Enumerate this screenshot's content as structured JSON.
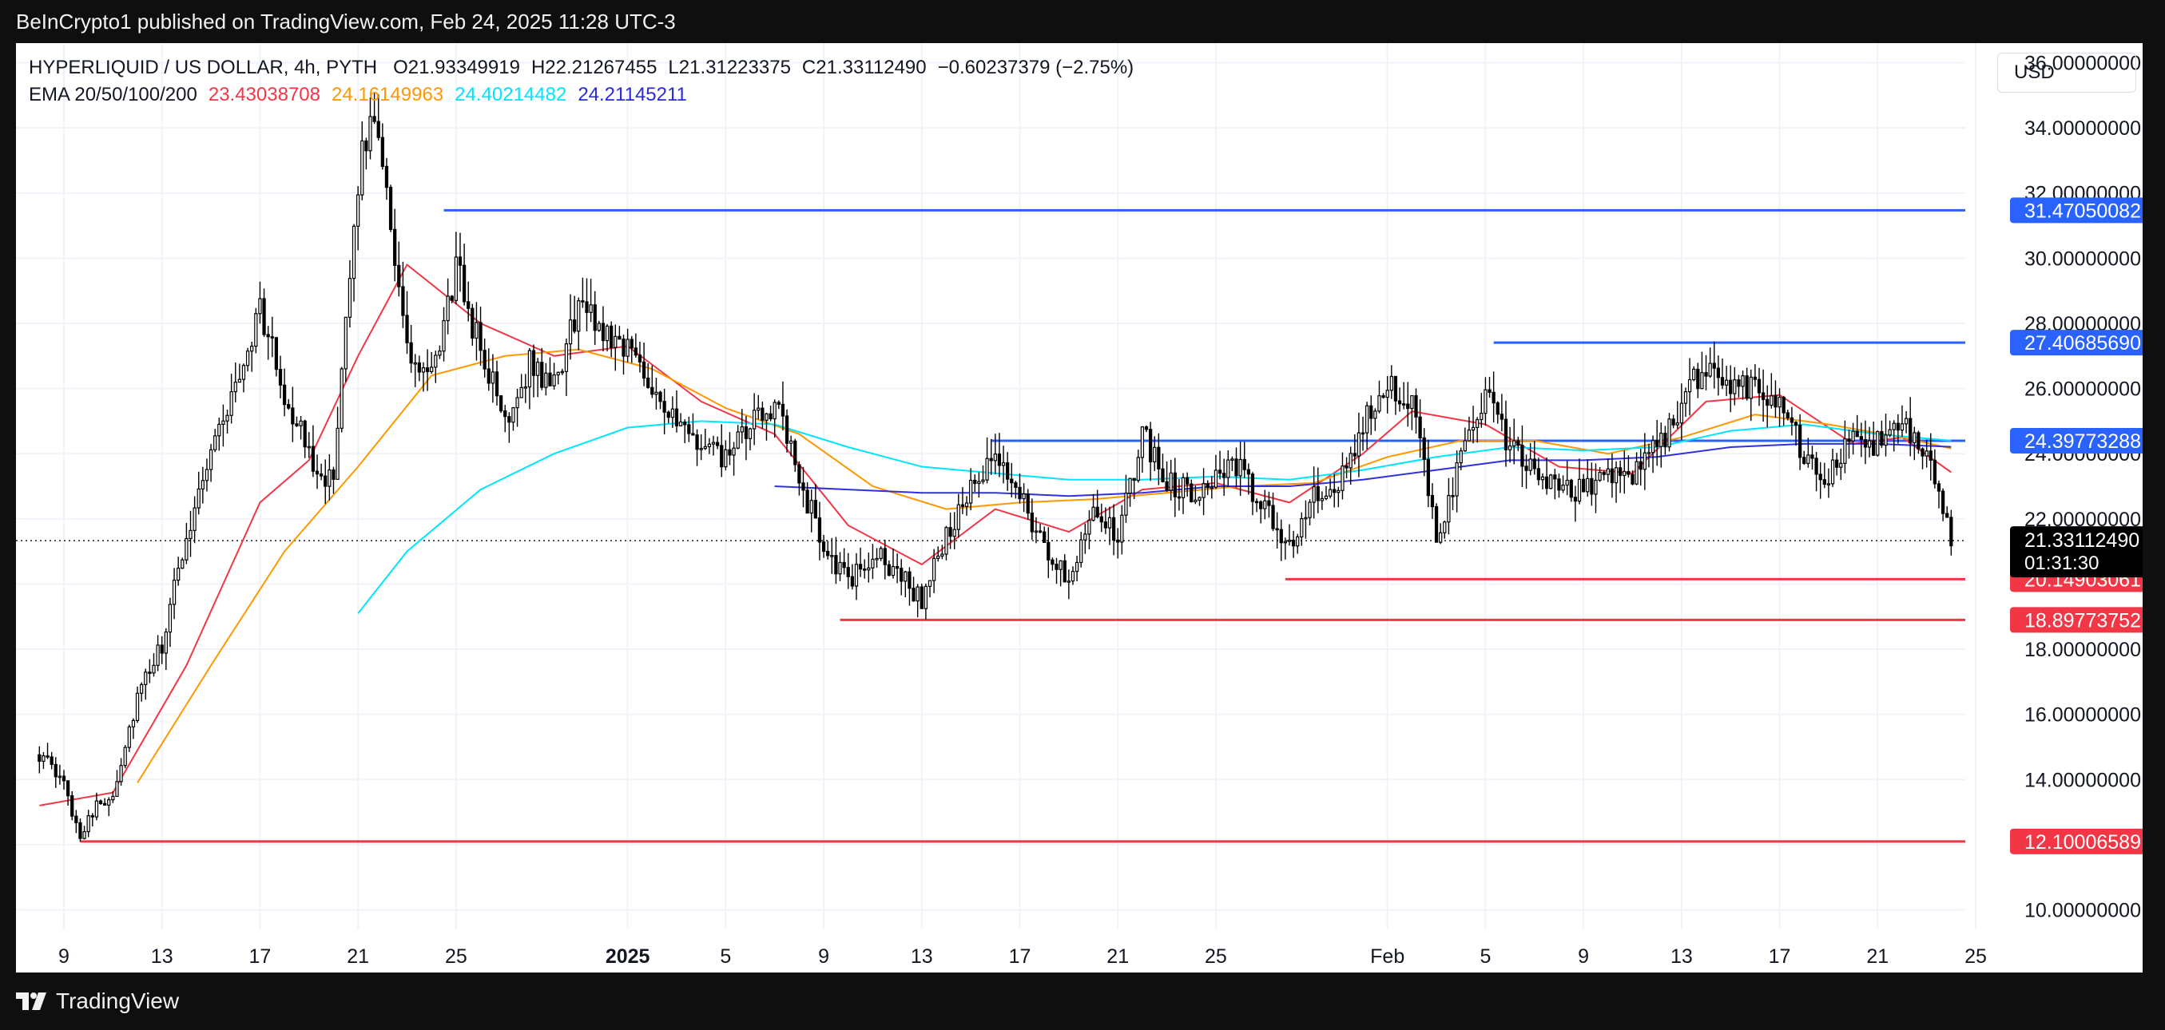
{
  "header": {
    "published": "BeInCrypto1 published on TradingView.com, Feb 24, 2025 11:28 UTC-3"
  },
  "legend": {
    "symbol": "HYPERLIQUID / US DOLLAR, 4h, PYTH",
    "open": "O21.93349919",
    "high": "H22.21267455",
    "low": "L21.31223375",
    "close": "C21.33112490",
    "change": "−0.60237379 (−2.75%)",
    "ema_label": "EMA 20/50/100/200",
    "ema20": "23.43038708",
    "ema50": "24.16149963",
    "ema100": "24.40214482",
    "ema200": "24.21145211"
  },
  "currency": "USD",
  "footer": {
    "brand": "TradingView"
  },
  "colors": {
    "ema20": "#f23645",
    "ema50": "#ff9800",
    "ema100": "#00e5ff",
    "ema200": "#3030e0",
    "resistance": "#2962ff",
    "support": "#f23645",
    "candle": "#000000"
  },
  "chart_data": {
    "type": "candlestick",
    "title": "HYPERLIQUID / US DOLLAR, 4h, PYTH",
    "timeframe": "4h",
    "current_price": "21.33112490",
    "countdown": "01:31:30",
    "ylim": [
      9.4,
      36.6
    ],
    "y_ticks": [
      {
        "value": 10,
        "label": "10.00000000"
      },
      {
        "value": 12,
        "label": "12.00000000"
      },
      {
        "value": 14,
        "label": "14.00000000"
      },
      {
        "value": 16,
        "label": "16.00000000"
      },
      {
        "value": 18,
        "label": "18.00000000"
      },
      {
        "value": 20,
        "label": "20.00000000"
      },
      {
        "value": 22,
        "label": "22.00000000"
      },
      {
        "value": 24,
        "label": "24.00000000"
      },
      {
        "value": 26,
        "label": "26.00000000"
      },
      {
        "value": 28,
        "label": "28.00000000"
      },
      {
        "value": 30,
        "label": "30.00000000"
      },
      {
        "value": 32,
        "label": "32.00000000"
      },
      {
        "value": 34,
        "label": "34.00000000"
      },
      {
        "value": 36,
        "label": "36.00000000"
      }
    ],
    "x_ticks": [
      {
        "date": "2024-12-09",
        "label": "9"
      },
      {
        "date": "2024-12-13",
        "label": "13"
      },
      {
        "date": "2024-12-17",
        "label": "17"
      },
      {
        "date": "2024-12-21",
        "label": "21"
      },
      {
        "date": "2024-12-25",
        "label": "25"
      },
      {
        "date": "2025-01-01",
        "label": "2025",
        "bold": true
      },
      {
        "date": "2025-01-05",
        "label": "5"
      },
      {
        "date": "2025-01-09",
        "label": "9"
      },
      {
        "date": "2025-01-13",
        "label": "13"
      },
      {
        "date": "2025-01-17",
        "label": "17"
      },
      {
        "date": "2025-01-21",
        "label": "21"
      },
      {
        "date": "2025-01-25",
        "label": "25"
      },
      {
        "date": "2025-02-01",
        "label": "Feb"
      },
      {
        "date": "2025-02-05",
        "label": "5"
      },
      {
        "date": "2025-02-09",
        "label": "9"
      },
      {
        "date": "2025-02-13",
        "label": "13"
      },
      {
        "date": "2025-02-17",
        "label": "17"
      },
      {
        "date": "2025-02-21",
        "label": "21"
      },
      {
        "date": "2025-02-25",
        "label": "25"
      }
    ],
    "levels": [
      {
        "name": "resistance",
        "value": 31.47050082,
        "label": "31.47050082",
        "start": "2024-12-24 12:00",
        "color": "#2962ff"
      },
      {
        "name": "resistance",
        "value": 27.4068569,
        "label": "27.40685690",
        "start": "2025-02-05 08:00",
        "color": "#2962ff"
      },
      {
        "name": "resistance",
        "value": 24.39773288,
        "label": "24.39773288",
        "start": "2025-01-15 20:00",
        "color": "#2962ff"
      },
      {
        "name": "support",
        "value": 20.14903061,
        "label": "20.14903061",
        "start": "2025-01-27 20:00",
        "color": "#f23645"
      },
      {
        "name": "support",
        "value": 18.89773752,
        "label": "18.89773752",
        "start": "2025-01-09 16:00",
        "color": "#f23645"
      },
      {
        "name": "support",
        "value": 12.10006589,
        "label": "12.10006589",
        "start": "2024-12-09 16:00",
        "color": "#f23645"
      }
    ],
    "price_path": [
      [
        "2024-12-08",
        14.8
      ],
      [
        "2024-12-09",
        13.8
      ],
      [
        "2024-12-09 16:00",
        12.3
      ],
      [
        "2024-12-10",
        12.9
      ],
      [
        "2024-12-11",
        13.6
      ],
      [
        "2024-12-12",
        16.5
      ],
      [
        "2024-12-13",
        18.1
      ],
      [
        "2024-12-14",
        21.5
      ],
      [
        "2024-12-15",
        24.2
      ],
      [
        "2024-12-16",
        26.0
      ],
      [
        "2024-12-17",
        28.5
      ],
      [
        "2024-12-18",
        25.8
      ],
      [
        "2024-12-19",
        24.0
      ],
      [
        "2024-12-20",
        23.0
      ],
      [
        "2024-12-21",
        32.5
      ],
      [
        "2024-12-21 16:00",
        34.6
      ],
      [
        "2024-12-22",
        33.2
      ],
      [
        "2024-12-23",
        27.0
      ],
      [
        "2024-12-24",
        26.2
      ],
      [
        "2024-12-25",
        29.7
      ],
      [
        "2024-12-26",
        27.2
      ],
      [
        "2024-12-27",
        25.0
      ],
      [
        "2024-12-28",
        26.8
      ],
      [
        "2024-12-29",
        26.0
      ],
      [
        "2024-12-30",
        28.6
      ],
      [
        "2024-12-31",
        27.8
      ],
      [
        "2025-01-01",
        27.3
      ],
      [
        "2025-01-02",
        26.2
      ],
      [
        "2025-01-03",
        24.8
      ],
      [
        "2025-01-04",
        24.2
      ],
      [
        "2025-01-05",
        23.8
      ],
      [
        "2025-01-06",
        24.8
      ],
      [
        "2025-01-07",
        25.6
      ],
      [
        "2025-01-08",
        23.2
      ],
      [
        "2025-01-09",
        21.2
      ],
      [
        "2025-01-10",
        20.0
      ],
      [
        "2025-01-11",
        20.9
      ],
      [
        "2025-01-12",
        20.4
      ],
      [
        "2025-01-13",
        19.5
      ],
      [
        "2025-01-14",
        21.5
      ],
      [
        "2025-01-15",
        22.8
      ],
      [
        "2025-01-16",
        23.8
      ],
      [
        "2025-01-17",
        22.9
      ],
      [
        "2025-01-18",
        21.0
      ],
      [
        "2025-01-19",
        20.2
      ],
      [
        "2025-01-20",
        22.5
      ],
      [
        "2025-01-21",
        21.3
      ],
      [
        "2025-01-22",
        24.6
      ],
      [
        "2025-01-23",
        23.2
      ],
      [
        "2025-01-24",
        22.8
      ],
      [
        "2025-01-25",
        23.4
      ],
      [
        "2025-01-26",
        23.5
      ],
      [
        "2025-01-27",
        22.2
      ],
      [
        "2025-01-28",
        21.2
      ],
      [
        "2025-01-29",
        22.6
      ],
      [
        "2025-01-30",
        22.9
      ],
      [
        "2025-01-31",
        24.8
      ],
      [
        "2025-02-01",
        26.4
      ],
      [
        "2025-02-02",
        25.4
      ],
      [
        "2025-02-03",
        21.5
      ],
      [
        "2025-02-04",
        23.8
      ],
      [
        "2025-02-05",
        25.8
      ],
      [
        "2025-02-06",
        24.2
      ],
      [
        "2025-02-07",
        23.4
      ],
      [
        "2025-02-08",
        22.8
      ],
      [
        "2025-02-09",
        22.9
      ],
      [
        "2025-02-10",
        23.5
      ],
      [
        "2025-02-11",
        23.3
      ],
      [
        "2025-02-12",
        24.2
      ],
      [
        "2025-02-13",
        25.5
      ],
      [
        "2025-02-14",
        26.8
      ],
      [
        "2025-02-15",
        26.0
      ],
      [
        "2025-02-16",
        26.2
      ],
      [
        "2025-02-17",
        25.6
      ],
      [
        "2025-02-18",
        24.0
      ],
      [
        "2025-02-19",
        23.2
      ],
      [
        "2025-02-20",
        24.6
      ],
      [
        "2025-02-21",
        24.3
      ],
      [
        "2025-02-22",
        24.8
      ],
      [
        "2025-02-23",
        24.1
      ],
      [
        "2025-02-24",
        21.33
      ]
    ],
    "ema_series": [
      {
        "name": "EMA 20",
        "color": "#f23645",
        "points": [
          [
            "2024-12-08",
            13.2
          ],
          [
            "2024-12-11",
            13.6
          ],
          [
            "2024-12-14",
            17.5
          ],
          [
            "2024-12-17",
            22.5
          ],
          [
            "2024-12-19",
            23.8
          ],
          [
            "2024-12-21",
            27.0
          ],
          [
            "2024-12-23",
            29.8
          ],
          [
            "2024-12-26",
            28.0
          ],
          [
            "2024-12-29",
            27.0
          ],
          [
            "2025-01-01",
            27.3
          ],
          [
            "2025-01-04",
            25.6
          ],
          [
            "2025-01-07",
            24.6
          ],
          [
            "2025-01-10",
            21.8
          ],
          [
            "2025-01-13",
            20.6
          ],
          [
            "2025-01-16",
            22.3
          ],
          [
            "2025-01-19",
            21.6
          ],
          [
            "2025-01-22",
            22.9
          ],
          [
            "2025-01-25",
            23.1
          ],
          [
            "2025-01-28",
            22.5
          ],
          [
            "2025-01-31",
            24.0
          ],
          [
            "2025-02-02",
            25.3
          ],
          [
            "2025-02-05",
            24.9
          ],
          [
            "2025-02-08",
            23.6
          ],
          [
            "2025-02-11",
            23.4
          ],
          [
            "2025-02-14",
            25.6
          ],
          [
            "2025-02-17",
            25.8
          ],
          [
            "2025-02-20",
            24.3
          ],
          [
            "2025-02-22",
            24.5
          ],
          [
            "2025-02-24",
            23.43
          ]
        ]
      },
      {
        "name": "EMA 50",
        "color": "#ff9800",
        "points": [
          [
            "2024-12-12",
            13.9
          ],
          [
            "2024-12-15",
            17.5
          ],
          [
            "2024-12-18",
            21.0
          ],
          [
            "2024-12-21",
            23.6
          ],
          [
            "2024-12-24",
            26.4
          ],
          [
            "2024-12-27",
            27.0
          ],
          [
            "2024-12-30",
            27.2
          ],
          [
            "2025-01-02",
            26.6
          ],
          [
            "2025-01-05",
            25.4
          ],
          [
            "2025-01-08",
            24.6
          ],
          [
            "2025-01-11",
            23.0
          ],
          [
            "2025-01-14",
            22.3
          ],
          [
            "2025-01-17",
            22.5
          ],
          [
            "2025-01-20",
            22.6
          ],
          [
            "2025-01-23",
            22.8
          ],
          [
            "2025-01-26",
            23.0
          ],
          [
            "2025-01-29",
            23.1
          ],
          [
            "2025-02-01",
            23.9
          ],
          [
            "2025-02-04",
            24.4
          ],
          [
            "2025-02-07",
            24.4
          ],
          [
            "2025-02-10",
            24.0
          ],
          [
            "2025-02-13",
            24.5
          ],
          [
            "2025-02-16",
            25.2
          ],
          [
            "2025-02-19",
            24.9
          ],
          [
            "2025-02-22",
            24.5
          ],
          [
            "2025-02-24",
            24.16
          ]
        ]
      },
      {
        "name": "EMA 100",
        "color": "#00e5ff",
        "points": [
          [
            "2024-12-21",
            19.1
          ],
          [
            "2024-12-23",
            21.0
          ],
          [
            "2024-12-26",
            22.9
          ],
          [
            "2024-12-29",
            24.0
          ],
          [
            "2025-01-01",
            24.8
          ],
          [
            "2025-01-04",
            25.0
          ],
          [
            "2025-01-07",
            24.9
          ],
          [
            "2025-01-10",
            24.2
          ],
          [
            "2025-01-13",
            23.6
          ],
          [
            "2025-01-16",
            23.4
          ],
          [
            "2025-01-19",
            23.2
          ],
          [
            "2025-01-22",
            23.2
          ],
          [
            "2025-01-25",
            23.3
          ],
          [
            "2025-01-28",
            23.2
          ],
          [
            "2025-01-31",
            23.5
          ],
          [
            "2025-02-03",
            23.9
          ],
          [
            "2025-02-06",
            24.2
          ],
          [
            "2025-02-09",
            24.1
          ],
          [
            "2025-02-12",
            24.2
          ],
          [
            "2025-02-15",
            24.7
          ],
          [
            "2025-02-18",
            24.9
          ],
          [
            "2025-02-21",
            24.6
          ],
          [
            "2025-02-24",
            24.4
          ]
        ]
      },
      {
        "name": "EMA 200",
        "color": "#3030e0",
        "points": [
          [
            "2025-01-07",
            23.0
          ],
          [
            "2025-01-10",
            22.9
          ],
          [
            "2025-01-13",
            22.8
          ],
          [
            "2025-01-16",
            22.8
          ],
          [
            "2025-01-19",
            22.7
          ],
          [
            "2025-01-22",
            22.8
          ],
          [
            "2025-01-25",
            23.0
          ],
          [
            "2025-01-28",
            23.0
          ],
          [
            "2025-01-31",
            23.2
          ],
          [
            "2025-02-03",
            23.5
          ],
          [
            "2025-02-06",
            23.8
          ],
          [
            "2025-02-09",
            23.8
          ],
          [
            "2025-02-12",
            23.9
          ],
          [
            "2025-02-15",
            24.2
          ],
          [
            "2025-02-18",
            24.3
          ],
          [
            "2025-02-21",
            24.3
          ],
          [
            "2025-02-24",
            24.21
          ]
        ]
      }
    ]
  }
}
